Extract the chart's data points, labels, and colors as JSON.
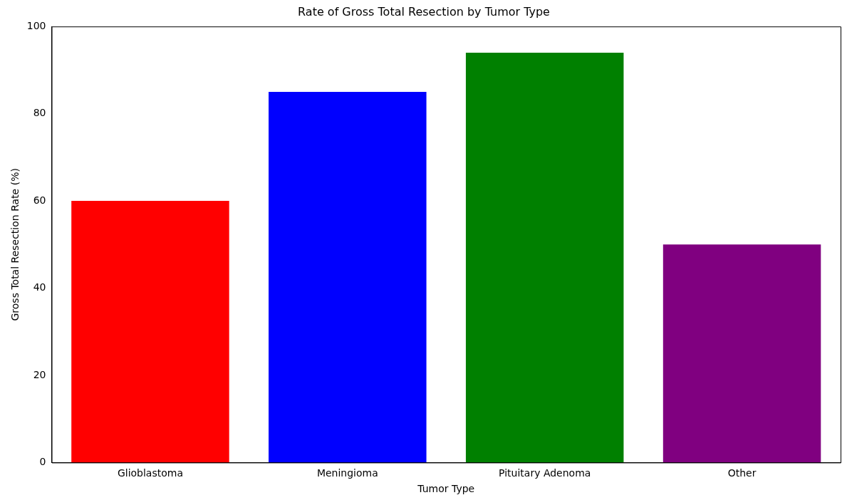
{
  "chart_data": {
    "type": "bar",
    "title": "Rate of Gross Total Resection by Tumor Type",
    "xlabel": "Tumor Type",
    "ylabel": "Gross Total Resection Rate (%)",
    "categories": [
      "Glioblastoma",
      "Meningioma",
      "Pituitary Adenoma",
      "Other"
    ],
    "values": [
      60,
      85,
      94,
      50
    ],
    "colors": [
      "#ff0000",
      "#0000ff",
      "#008000",
      "#800080"
    ],
    "ylim": [
      0,
      100
    ],
    "yticks": [
      0,
      20,
      40,
      60,
      80,
      100
    ],
    "grid": false,
    "legend": false
  }
}
